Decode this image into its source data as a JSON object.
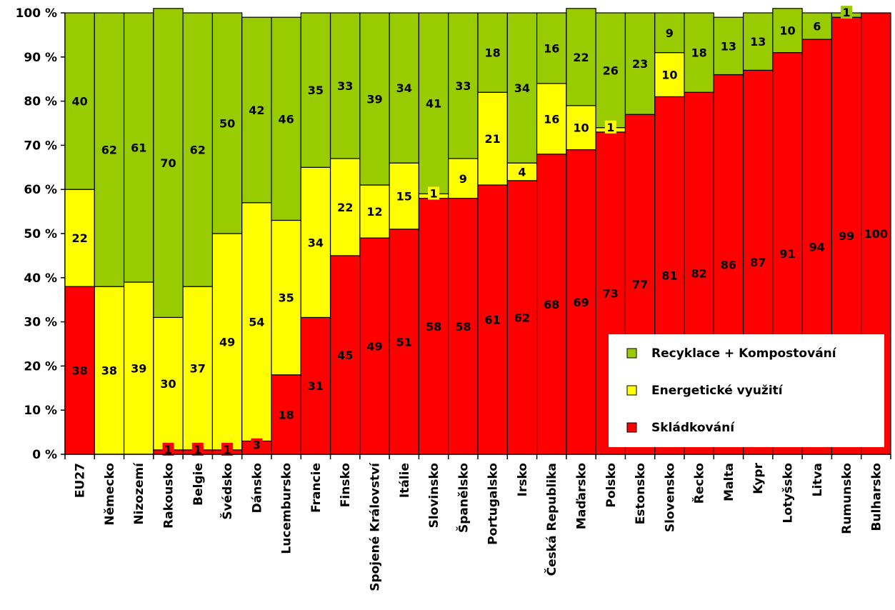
{
  "chart_data": {
    "type": "bar",
    "stacked": true,
    "percent": true,
    "categories": [
      "EU27",
      "Německo",
      "Nizozemí",
      "Rakousko",
      "Belgie",
      "Švédsko",
      "Dánsko",
      "Lucembursko",
      "Francie",
      "Finsko",
      "Spojené Království",
      "Itálie",
      "Slovinsko",
      "Španělsko",
      "Portugalsko",
      "Irsko",
      "Česká Republika",
      "Maďarsko",
      "Polsko",
      "Estonsko",
      "Slovensko",
      "Řecko",
      "Malta",
      "Kypr",
      "Lotyšsko",
      "Litva",
      "Rumunsko",
      "Bulharsko"
    ],
    "series": [
      {
        "name": "Skládkování",
        "color": "#ff0000",
        "values": [
          38,
          0,
          0,
          1,
          1,
          1,
          3,
          18,
          31,
          45,
          49,
          51,
          58,
          58,
          61,
          62,
          68,
          69,
          73,
          77,
          81,
          82,
          86,
          87,
          91,
          94,
          99,
          100
        ]
      },
      {
        "name": "Energetické využití",
        "color": "#ffff00",
        "values": [
          22,
          38,
          39,
          30,
          37,
          49,
          54,
          35,
          34,
          22,
          12,
          15,
          1,
          9,
          21,
          4,
          16,
          10,
          1,
          0,
          10,
          0,
          0,
          0,
          0,
          0,
          0,
          0
        ]
      },
      {
        "name": "Recyklace + Kompostování",
        "color": "#99cc00",
        "values": [
          40,
          62,
          61,
          70,
          62,
          50,
          42,
          46,
          35,
          33,
          39,
          34,
          41,
          33,
          18,
          34,
          16,
          22,
          26,
          23,
          9,
          18,
          13,
          13,
          10,
          6,
          1,
          0
        ]
      }
    ],
    "yticks": [
      "0 %",
      "10 %",
      "20 %",
      "30 %",
      "40 %",
      "50 %",
      "60 %",
      "70 %",
      "80 %",
      "90 %",
      "100 %"
    ],
    "ylim": [
      0,
      100
    ],
    "legend": {
      "position": "bottom-right",
      "order": [
        "Recyklace + Kompostování",
        "Energetické využití",
        "Skládkování"
      ]
    }
  }
}
